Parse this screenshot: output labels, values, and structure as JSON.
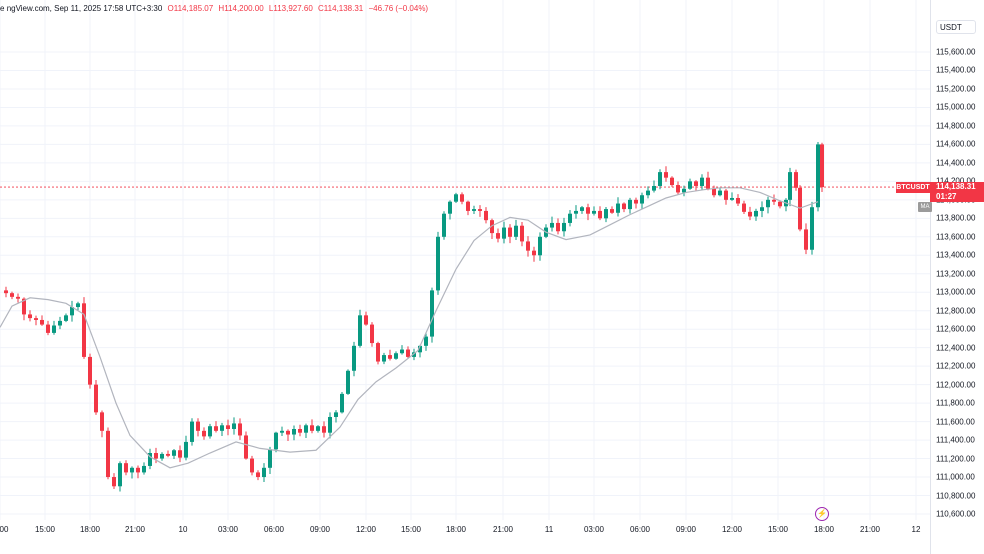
{
  "header": {
    "source": "ngView.com, Sep 11, 2025 17:58 UTC+3:30",
    "prefix": "e",
    "open": "O114,185.07",
    "high": "H114,200.00",
    "low": "L113,927.60",
    "close": "C114,138.31",
    "change": "−46.76 (−0.04%)"
  },
  "currency_button": "USDT",
  "symbol_label": "BTCUSDT",
  "last_price": "114,138.31",
  "countdown": "01:27",
  "ma_label": "MA",
  "colors": {
    "up": "#089981",
    "down": "#f23645",
    "ma": "#b2b5be",
    "bolt": "#9c27b0"
  },
  "chart_data": {
    "type": "candlestick",
    "ylim": [
      110500,
      115800
    ],
    "y_ticks": [
      "115,600.00",
      "115,400.00",
      "115,200.00",
      "115,000.00",
      "114,800.00",
      "114,600.00",
      "114,400.00",
      "114,200.00",
      "114,000.00",
      "113,800.00",
      "113,600.00",
      "113,400.00",
      "113,200.00",
      "113,000.00",
      "112,800.00",
      "112,600.00",
      "112,400.00",
      "112,200.00",
      "112,000.00",
      "111,800.00",
      "111,600.00",
      "111,400.00",
      "111,200.00",
      "111,000.00",
      "110,800.00",
      "110,600.00"
    ],
    "x_ticks": [
      "00",
      "15:00",
      "18:00",
      "21:00",
      "10",
      "03:00",
      "06:00",
      "09:00",
      "12:00",
      "15:00",
      "18:00",
      "21:00",
      "11",
      "03:00",
      "06:00",
      "09:00",
      "12:00",
      "15:00",
      "18:00",
      "21:00",
      "12"
    ],
    "last_price": 114138.31,
    "close_path": [
      [
        0,
        113020
      ],
      [
        6,
        112990
      ],
      [
        12,
        112950
      ],
      [
        18,
        112930
      ],
      [
        24,
        112760
      ],
      [
        30,
        112720
      ],
      [
        36,
        112700
      ],
      [
        42,
        112650
      ],
      [
        48,
        112560
      ],
      [
        54,
        112640
      ],
      [
        60,
        112690
      ],
      [
        66,
        112750
      ],
      [
        72,
        112840
      ],
      [
        78,
        112880
      ],
      [
        84,
        112300
      ],
      [
        90,
        112000
      ],
      [
        96,
        111700
      ],
      [
        102,
        111500
      ],
      [
        108,
        111000
      ],
      [
        114,
        110900
      ],
      [
        120,
        111150
      ],
      [
        126,
        111050
      ],
      [
        132,
        111100
      ],
      [
        138,
        111050
      ],
      [
        144,
        111120
      ],
      [
        150,
        111260
      ],
      [
        156,
        111200
      ],
      [
        162,
        111250
      ],
      [
        168,
        111230
      ],
      [
        174,
        111290
      ],
      [
        180,
        111210
      ],
      [
        186,
        111380
      ],
      [
        192,
        111600
      ],
      [
        198,
        111500
      ],
      [
        204,
        111440
      ],
      [
        210,
        111550
      ],
      [
        216,
        111500
      ],
      [
        222,
        111560
      ],
      [
        228,
        111520
      ],
      [
        234,
        111580
      ],
      [
        240,
        111450
      ],
      [
        246,
        111200
      ],
      [
        252,
        111050
      ],
      [
        258,
        111000
      ],
      [
        264,
        111100
      ],
      [
        270,
        111300
      ],
      [
        276,
        111480
      ],
      [
        282,
        111500
      ],
      [
        288,
        111460
      ],
      [
        294,
        111520
      ],
      [
        300,
        111480
      ],
      [
        306,
        111560
      ],
      [
        312,
        111500
      ],
      [
        318,
        111550
      ],
      [
        324,
        111480
      ],
      [
        330,
        111650
      ],
      [
        336,
        111700
      ],
      [
        342,
        111900
      ],
      [
        348,
        112150
      ],
      [
        354,
        112420
      ],
      [
        360,
        112750
      ],
      [
        366,
        112650
      ],
      [
        372,
        112450
      ],
      [
        378,
        112250
      ],
      [
        384,
        112320
      ],
      [
        390,
        112280
      ],
      [
        396,
        112340
      ],
      [
        402,
        112380
      ],
      [
        408,
        112300
      ],
      [
        414,
        112350
      ],
      [
        420,
        112420
      ],
      [
        426,
        112520
      ],
      [
        432,
        113020
      ],
      [
        438,
        113600
      ],
      [
        444,
        113850
      ],
      [
        450,
        113980
      ],
      [
        456,
        114060
      ],
      [
        462,
        113980
      ],
      [
        468,
        113880
      ],
      [
        474,
        113900
      ],
      [
        480,
        113880
      ],
      [
        486,
        113780
      ],
      [
        492,
        113640
      ],
      [
        498,
        113580
      ],
      [
        504,
        113700
      ],
      [
        510,
        113600
      ],
      [
        516,
        113720
      ],
      [
        522,
        113550
      ],
      [
        528,
        113450
      ],
      [
        534,
        113400
      ],
      [
        540,
        113600
      ],
      [
        546,
        113700
      ],
      [
        552,
        113750
      ],
      [
        558,
        113660
      ],
      [
        564,
        113750
      ],
      [
        570,
        113850
      ],
      [
        576,
        113880
      ],
      [
        582,
        113920
      ],
      [
        588,
        113850
      ],
      [
        594,
        113880
      ],
      [
        600,
        113800
      ],
      [
        606,
        113900
      ],
      [
        612,
        113860
      ],
      [
        618,
        113960
      ],
      [
        624,
        113900
      ],
      [
        630,
        114000
      ],
      [
        636,
        113960
      ],
      [
        642,
        114050
      ],
      [
        648,
        114100
      ],
      [
        654,
        114150
      ],
      [
        660,
        114300
      ],
      [
        666,
        114240
      ],
      [
        672,
        114160
      ],
      [
        678,
        114080
      ],
      [
        684,
        114120
      ],
      [
        690,
        114200
      ],
      [
        696,
        114150
      ],
      [
        702,
        114240
      ],
      [
        708,
        114120
      ],
      [
        714,
        114050
      ],
      [
        720,
        114100
      ],
      [
        726,
        114000
      ],
      [
        732,
        114020
      ],
      [
        738,
        113960
      ],
      [
        744,
        113870
      ],
      [
        750,
        113820
      ],
      [
        756,
        113880
      ],
      [
        762,
        113920
      ],
      [
        768,
        114000
      ],
      [
        774,
        113980
      ],
      [
        780,
        113930
      ],
      [
        786,
        114000
      ],
      [
        790,
        114300
      ],
      [
        796,
        114130
      ],
      [
        800,
        113680
      ],
      [
        806,
        113460
      ],
      [
        812,
        113920
      ],
      [
        818,
        114600
      ],
      [
        822,
        114138
      ]
    ],
    "ma_points": [
      [
        0,
        112620
      ],
      [
        12,
        112850
      ],
      [
        30,
        112940
      ],
      [
        48,
        112920
      ],
      [
        66,
        112880
      ],
      [
        84,
        112760
      ],
      [
        100,
        112300
      ],
      [
        116,
        111800
      ],
      [
        130,
        111450
      ],
      [
        150,
        111220
      ],
      [
        170,
        111100
      ],
      [
        188,
        111150
      ],
      [
        210,
        111260
      ],
      [
        236,
        111380
      ],
      [
        260,
        111310
      ],
      [
        290,
        111270
      ],
      [
        316,
        111290
      ],
      [
        340,
        111540
      ],
      [
        358,
        111840
      ],
      [
        376,
        112030
      ],
      [
        396,
        112180
      ],
      [
        418,
        112370
      ],
      [
        436,
        112800
      ],
      [
        456,
        113250
      ],
      [
        474,
        113560
      ],
      [
        492,
        113720
      ],
      [
        510,
        113810
      ],
      [
        528,
        113780
      ],
      [
        546,
        113650
      ],
      [
        566,
        113570
      ],
      [
        590,
        113620
      ],
      [
        610,
        113730
      ],
      [
        630,
        113840
      ],
      [
        648,
        113930
      ],
      [
        666,
        114020
      ],
      [
        686,
        114080
      ],
      [
        704,
        114110
      ],
      [
        720,
        114130
      ],
      [
        740,
        114130
      ],
      [
        760,
        114080
      ],
      [
        780,
        113990
      ],
      [
        800,
        113910
      ],
      [
        818,
        113980
      ]
    ]
  }
}
